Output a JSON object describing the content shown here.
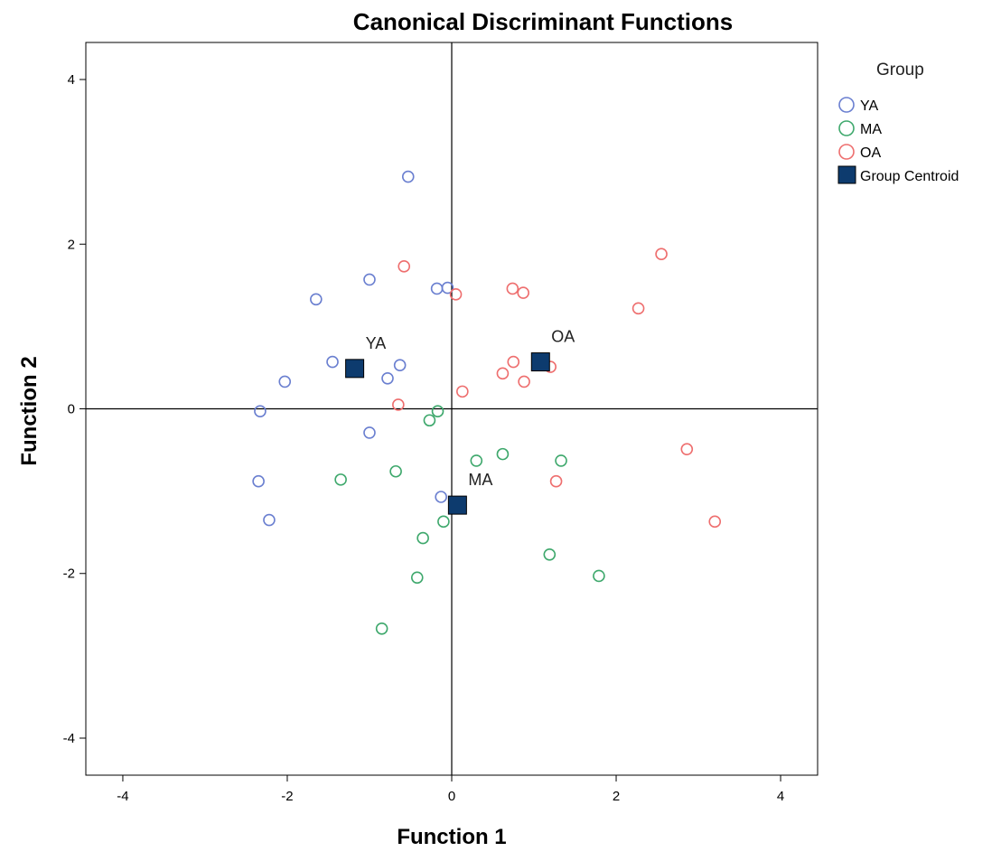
{
  "chart_data": {
    "type": "scatter",
    "title": "Canonical Discriminant Functions",
    "xlabel": "Function 1",
    "ylabel": "Function 2",
    "xlim": [
      -4.45,
      4.45
    ],
    "ylim": [
      -4.45,
      4.45
    ],
    "xticks": [
      -4,
      -2,
      0,
      2,
      4
    ],
    "yticks": [
      -4,
      -2,
      0,
      2,
      4
    ],
    "grid": false,
    "reference_lines": {
      "x": 0,
      "y": 0
    },
    "legend": {
      "title": "Group",
      "placement": "right",
      "items": [
        "YA",
        "MA",
        "OA",
        "Group Centroid"
      ]
    },
    "series": [
      {
        "name": "YA",
        "color": "#6a7fd0",
        "marker": "open-circle",
        "points": [
          [
            -0.53,
            2.82
          ],
          [
            -1.0,
            1.57
          ],
          [
            -1.65,
            1.33
          ],
          [
            -0.18,
            1.46
          ],
          [
            -0.05,
            1.47
          ],
          [
            -1.45,
            0.57
          ],
          [
            -0.63,
            0.53
          ],
          [
            -0.78,
            0.37
          ],
          [
            -2.03,
            0.33
          ],
          [
            -2.33,
            -0.03
          ],
          [
            -1.0,
            -0.29
          ],
          [
            -2.35,
            -0.88
          ],
          [
            -2.22,
            -1.35
          ],
          [
            -0.13,
            -1.07
          ]
        ]
      },
      {
        "name": "MA",
        "color": "#3ea86c",
        "marker": "open-circle",
        "points": [
          [
            -0.17,
            -0.03
          ],
          [
            -0.27,
            -0.14
          ],
          [
            -1.35,
            -0.86
          ],
          [
            -0.68,
            -0.76
          ],
          [
            0.3,
            -0.63
          ],
          [
            0.62,
            -0.55
          ],
          [
            1.33,
            -0.63
          ],
          [
            -0.1,
            -1.37
          ],
          [
            -0.35,
            -1.57
          ],
          [
            -0.42,
            -2.05
          ],
          [
            1.19,
            -1.77
          ],
          [
            1.79,
            -2.03
          ],
          [
            -0.85,
            -2.67
          ]
        ]
      },
      {
        "name": "OA",
        "color": "#ee6e6e",
        "marker": "open-circle",
        "points": [
          [
            -0.58,
            1.73
          ],
          [
            0.05,
            1.39
          ],
          [
            0.74,
            1.46
          ],
          [
            0.87,
            1.41
          ],
          [
            2.55,
            1.88
          ],
          [
            2.27,
            1.22
          ],
          [
            0.75,
            0.57
          ],
          [
            0.62,
            0.43
          ],
          [
            1.2,
            0.51
          ],
          [
            0.88,
            0.33
          ],
          [
            0.13,
            0.21
          ],
          [
            -0.65,
            0.05
          ],
          [
            1.27,
            -0.88
          ],
          [
            2.86,
            -0.49
          ],
          [
            3.2,
            -1.37
          ]
        ]
      }
    ],
    "centroids": {
      "name": "Group Centroid",
      "color": "#0d3b6e",
      "marker": "filled-square",
      "points": [
        {
          "label": "YA",
          "x": -1.18,
          "y": 0.49
        },
        {
          "label": "MA",
          "x": 0.07,
          "y": -1.17
        },
        {
          "label": "OA",
          "x": 1.08,
          "y": 0.57
        }
      ]
    }
  }
}
